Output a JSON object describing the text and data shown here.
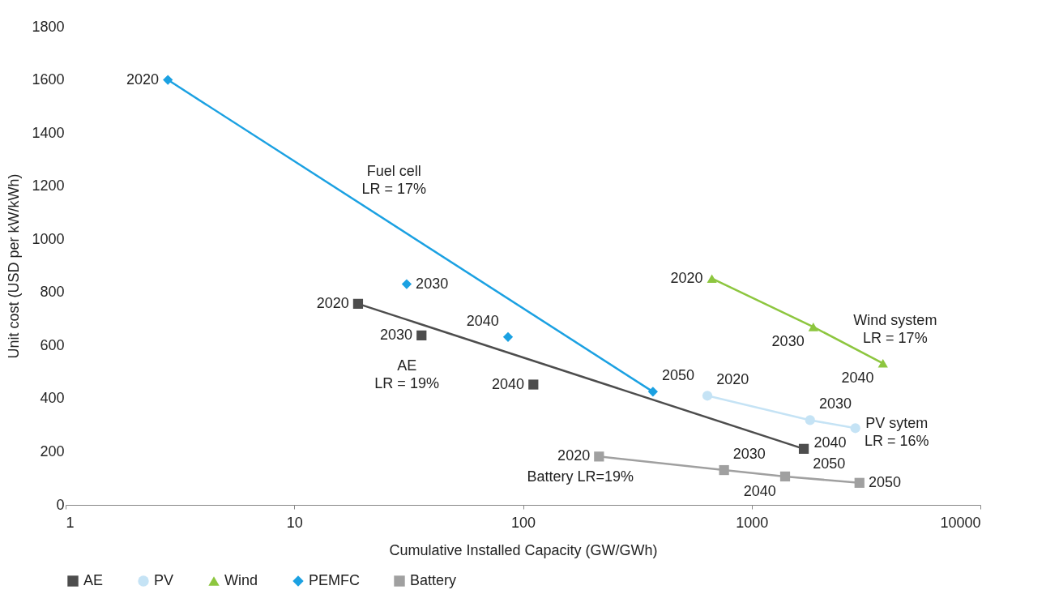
{
  "chart_data": {
    "type": "scatter",
    "xlabel": "Cumulative Installed Capacity (GW/GWh)",
    "ylabel": "Unit cost (USD per kW/kWh)",
    "xlim": [
      1,
      10000
    ],
    "xticks": [
      1,
      10,
      100,
      1000,
      10000
    ],
    "ylim": [
      0,
      1800
    ],
    "yticks": [
      0,
      200,
      400,
      600,
      800,
      1000,
      1200,
      1400,
      1600,
      1800
    ],
    "log": "x",
    "grid": false,
    "legend": "bottom",
    "series": [
      {
        "name": "AE",
        "marker": "square",
        "color": "#4d4d4d",
        "x": [
          19,
          36,
          111,
          1690
        ],
        "values": [
          757,
          638,
          453,
          211
        ]
      },
      {
        "type": "line",
        "color": "#4d4d4d",
        "x": [
          19,
          1690
        ],
        "values": [
          757,
          211
        ]
      },
      {
        "name": "PV",
        "type": "line",
        "marker": "circle",
        "color": "#c5e3f5",
        "x": [
          640,
          1800,
          2840
        ],
        "values": [
          411,
          319,
          289
        ]
      },
      {
        "name": "Wind",
        "type": "line",
        "marker": "triangle",
        "color": "#8dc63f",
        "x": [
          670,
          1860,
          3750
        ],
        "values": [
          852,
          670,
          533
        ]
      },
      {
        "name": "PEMFC",
        "marker": "diamond",
        "color": "#1ba1e2",
        "x": [
          2.8,
          31,
          86,
          370
        ],
        "values": [
          1600,
          831,
          632,
          426
        ]
      },
      {
        "type": "line",
        "color": "#1ba1e2",
        "x": [
          2.8,
          370
        ],
        "values": [
          1600,
          426
        ]
      },
      {
        "name": "Battery",
        "type": "line",
        "marker": "square",
        "color": "#a0a0a0",
        "x": [
          215,
          757,
          1400,
          2960
        ],
        "values": [
          182,
          131,
          107,
          83
        ]
      }
    ],
    "annotations": [
      {
        "text": "2020",
        "x": 2.8,
        "y": 1600
      },
      {
        "text": "Fuel cell\nLR = 17%",
        "x": 17.4,
        "y": 1161
      },
      {
        "text": "2030",
        "x": 31,
        "y": 831
      },
      {
        "text": "2020",
        "x": 19,
        "y": 757
      },
      {
        "text": "2040",
        "x": 86,
        "y": 632
      },
      {
        "text": "2030",
        "x": 36,
        "y": 638
      },
      {
        "text": "AE\nLR = 19%",
        "x": 50,
        "y": 639
      },
      {
        "text": "2040",
        "x": 111,
        "y": 453
      },
      {
        "text": "2050",
        "x": 370,
        "y": 426
      },
      {
        "text": "2020",
        "x": 670,
        "y": 852
      },
      {
        "text": "Wind system\nLR = 17%",
        "x": 2500,
        "y": 600
      },
      {
        "text": "2030",
        "x": 1860,
        "y": 670
      },
      {
        "text": "2040",
        "x": 3750,
        "y": 533
      },
      {
        "text": "2020",
        "x": 640,
        "y": 411
      },
      {
        "text": "PV sytem\nLR = 16%",
        "x": 2200,
        "y": 305
      },
      {
        "text": "2030",
        "x": 1800,
        "y": 319
      },
      {
        "text": "2040",
        "x": 2840,
        "y": 289
      },
      {
        "text": "2050",
        "x": 1690,
        "y": 211
      },
      {
        "text": "2020",
        "x": 215,
        "y": 182
      },
      {
        "text": "2030",
        "x": 757,
        "y": 131
      },
      {
        "text": "Battery LR=19%",
        "x": 340,
        "y": 163
      },
      {
        "text": "2040",
        "x": 1400,
        "y": 107
      },
      {
        "text": "2050",
        "x": 2960,
        "y": 83
      }
    ]
  }
}
